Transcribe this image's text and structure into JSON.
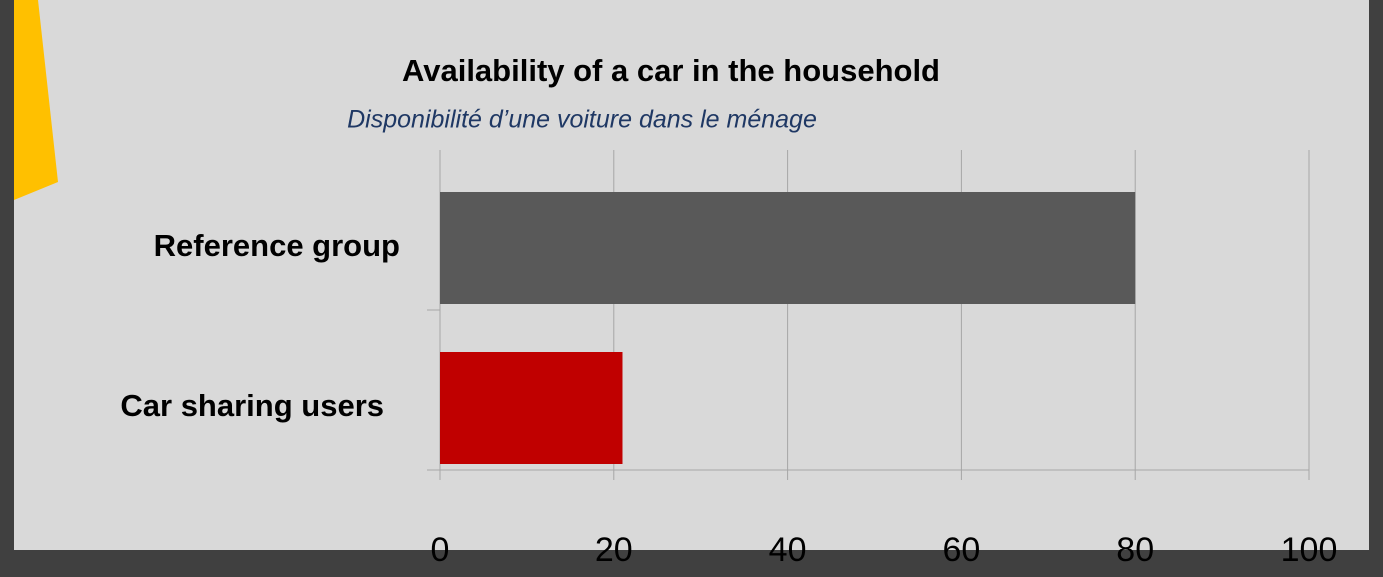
{
  "chart_data": {
    "type": "hbar",
    "title": "Availability of a car in the household",
    "subtitle": "Disponibilité d’une voiture dans le ménage",
    "categories": [
      "Reference group",
      "Car sharing users"
    ],
    "values": [
      80,
      21
    ],
    "colors": [
      "#595959",
      "#c00000"
    ],
    "xlim": [
      0,
      100
    ],
    "xticks": [
      0,
      20,
      40,
      60,
      80,
      100
    ],
    "grid": true
  }
}
